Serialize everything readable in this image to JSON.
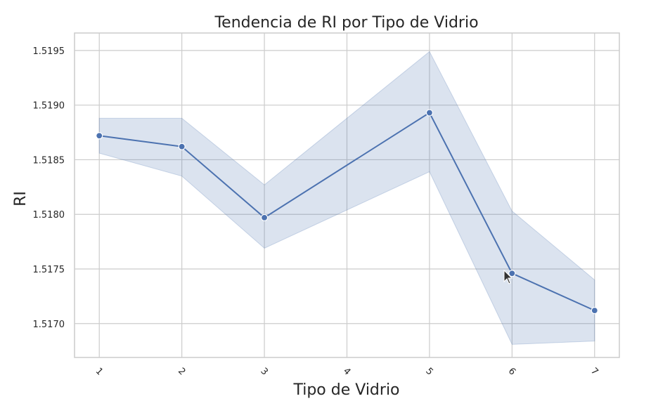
{
  "chart_data": {
    "type": "line",
    "title": "Tendencia de RI por Tipo de Vidrio",
    "xlabel": "Tipo de Vidrio",
    "ylabel": "RI",
    "x": [
      "1",
      "2",
      "3",
      "4",
      "5",
      "6",
      "7"
    ],
    "series": [
      {
        "points": [
          {
            "x": 1,
            "y": 1.51872
          },
          {
            "x": 2,
            "y": 1.51862
          },
          {
            "x": 3,
            "y": 1.51797
          },
          {
            "x": 5,
            "y": 1.51893
          },
          {
            "x": 6,
            "y": 1.51746
          },
          {
            "x": 7,
            "y": 1.51712
          }
        ],
        "ci_lower": [
          1.51856,
          1.51835,
          1.51769,
          1.51839,
          1.51681,
          1.51684
        ],
        "ci_upper": [
          1.51888,
          1.51888,
          1.51827,
          1.51949,
          1.51803,
          1.5174
        ],
        "color": "#4c72b0"
      }
    ],
    "y_ticks": [
      "1.5170",
      "1.5175",
      "1.5180",
      "1.5185",
      "1.5190",
      "1.5195"
    ],
    "x_ticks": [
      "1",
      "2",
      "3",
      "4",
      "5",
      "6",
      "7"
    ],
    "ylim": [
      1.51669,
      1.51966
    ],
    "xlim": [
      0.7,
      7.3
    ],
    "grid": true,
    "style": "whitegrid",
    "band_color": "#4c72b0",
    "grid_color": "#cccccc",
    "tick_rotation": 45
  }
}
